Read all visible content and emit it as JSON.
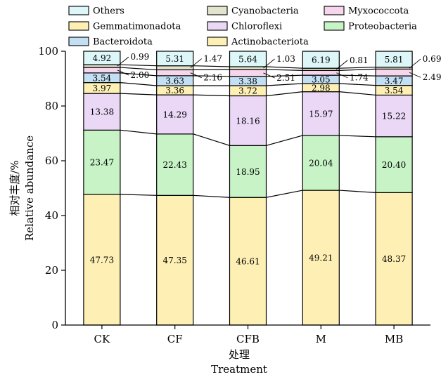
{
  "chart_data": {
    "type": "bar",
    "stacked": true,
    "categories": [
      "CK",
      "CF",
      "CFB",
      "M",
      "MB"
    ],
    "ylim": [
      0,
      100
    ],
    "yticks": [
      0,
      20,
      40,
      60,
      80,
      100
    ],
    "ylabel_cn": "相对丰度/%",
    "ylabel_en": "Relative abundance",
    "xlabel_cn": "处理",
    "xlabel_en": "Treatment",
    "grid": false,
    "legend_position": "top",
    "series": [
      {
        "name": "Actinobacteriota",
        "color": "#fef0b4",
        "values": [
          47.73,
          47.35,
          46.61,
          49.21,
          48.37
        ]
      },
      {
        "name": "Proteobacteria",
        "color": "#c7f3c7",
        "values": [
          23.47,
          22.43,
          18.95,
          20.04,
          20.4
        ]
      },
      {
        "name": "Chloroflexi",
        "color": "#ead8f6",
        "values": [
          13.38,
          14.29,
          18.16,
          15.97,
          15.22
        ]
      },
      {
        "name": "Gemmatimonadota",
        "color": "#fef0b4",
        "values": [
          3.97,
          3.36,
          3.72,
          2.98,
          3.54
        ]
      },
      {
        "name": "Bacteroidota",
        "color": "#c3dff4",
        "values": [
          3.54,
          3.63,
          3.38,
          3.05,
          3.47
        ]
      },
      {
        "name": "Myxococcota",
        "color": "#f6d6ec",
        "values": [
          2.0,
          2.16,
          2.51,
          1.74,
          2.49
        ]
      },
      {
        "name": "Cyanobacteria",
        "color": "#e2e5cc",
        "values": [
          0.99,
          1.47,
          1.03,
          0.81,
          0.69
        ]
      },
      {
        "name": "Others",
        "color": "#ddf6f8",
        "values": [
          4.92,
          5.31,
          5.64,
          6.19,
          5.81
        ]
      }
    ],
    "legend": [
      {
        "name": "Others",
        "color": "#ddf6f8"
      },
      {
        "name": "Cyanobacteria",
        "color": "#e2e5cc"
      },
      {
        "name": "Myxococcota",
        "color": "#f6d6ec"
      },
      {
        "name": "Gemmatimonadota",
        "color": "#fef0b4"
      },
      {
        "name": "Chloroflexi",
        "color": "#ead8f6"
      },
      {
        "name": "Proteobacteria",
        "color": "#c7f3c7"
      },
      {
        "name": "Bacteroidota",
        "color": "#c3dff4"
      },
      {
        "name": "Actinobacteriota",
        "color": "#fef0b4"
      }
    ],
    "data_labels": [
      [
        "47.73",
        "47.35",
        "46.61",
        "49.21",
        "48.37"
      ],
      [
        "23.47",
        "22.43",
        "18.95",
        "20.04",
        "20.40"
      ],
      [
        "13.38",
        "14.29",
        "18.16",
        "15.97",
        "15.22"
      ],
      [
        "3.97",
        "3.36",
        "3.72",
        "2.98",
        "3.54"
      ],
      [
        "3.54",
        "3.63",
        "3.38",
        "3.05",
        "3.47"
      ],
      [
        "2.00",
        "2.16",
        "2.51",
        "1.74",
        "2.49"
      ],
      [
        "0.99",
        "1.47",
        "1.03",
        "0.81",
        "0.69"
      ],
      [
        "4.92",
        "5.31",
        "5.64",
        "6.19",
        "5.81"
      ]
    ]
  }
}
